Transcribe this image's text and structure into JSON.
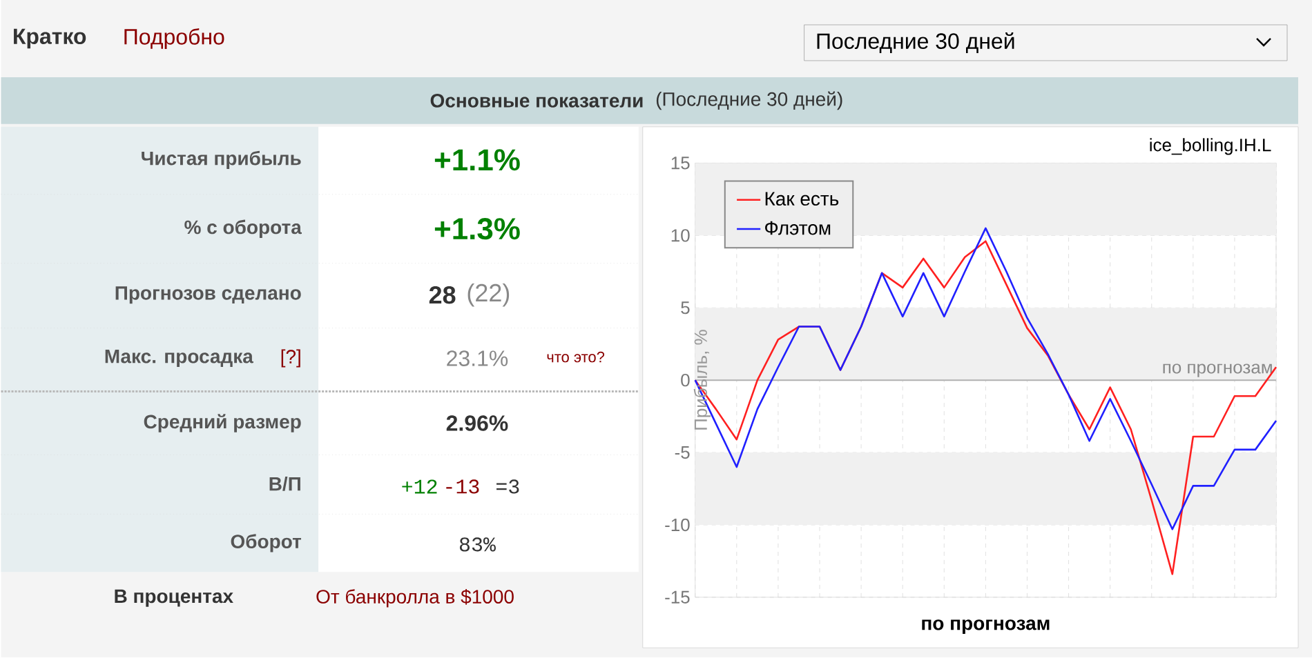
{
  "chart_data": [
    {
      "type": "other",
      "title": "Основные показатели",
      "subtitle": "(Последние 30 дней)",
      "annotations": [
        "Кратко",
        "Подробно",
        "Последние 30 дней",
        "Чистая прибыль",
        "+1.1%",
        "% с оборота",
        "+1.3%",
        "Прогнозов сделано",
        "28",
        "(22)",
        "Макс. просадка",
        "[?]",
        "23.1%",
        "что это?",
        "Средний размер",
        "2.96%",
        "В/П",
        "+12",
        "-13",
        "=3",
        "Оборот",
        "83%",
        "В процентах",
        "От банкролла в $1000"
      ]
    },
    {
      "type": "line",
      "xlabel": "по прогнозам",
      "ylabel": "Прибыль, %",
      "annotations": [
        "ice_bolling.IH.L"
      ],
      "categories": [
        null,
        null,
        null,
        null,
        null,
        null,
        null,
        null,
        null,
        null,
        null,
        null,
        null,
        null,
        null,
        null,
        null,
        null,
        null,
        null,
        null,
        null,
        null,
        null,
        null,
        null,
        null,
        null,
        null
      ],
      "series": [
        {
          "name": "Как есть",
          "color": "#ff2020",
          "values": [
            0,
            -2,
            -4.1,
            0,
            2.8,
            3.7,
            3.7,
            0.7,
            3.7,
            7.4,
            6.4,
            8.4,
            6.4,
            8.5,
            9.6,
            6.6,
            3.6,
            1.7,
            -1.0,
            -3.4,
            -0.5,
            -3.4,
            -8.3,
            -13.4,
            -3.9,
            -3.9,
            -1.1,
            -1.1,
            0.9
          ]
        },
        {
          "name": "Флэтом",
          "color": "#2020ff",
          "values": [
            0,
            -3,
            -6.0,
            -2.0,
            0.9,
            3.7,
            3.7,
            0.7,
            3.7,
            7.4,
            4.4,
            7.4,
            4.4,
            7.5,
            10.5,
            7.5,
            4.3,
            1.8,
            -1.0,
            -4.2,
            -1.3,
            -4.2,
            -7.2,
            -10.3,
            -7.3,
            -7.3,
            -4.8,
            -4.8,
            -2.8
          ]
        }
      ],
      "ylim": [
        -15,
        15
      ],
      "yticks": [
        -15,
        -10,
        -5,
        0,
        5,
        10,
        15
      ],
      "ref_lines": [
        {
          "axis": "y",
          "value": 0,
          "label": "по прогнозам",
          "color": "#b0b0b0"
        }
      ],
      "bands": [
        {
          "axis": "y",
          "from": 10,
          "to": 15,
          "color": "#f0f0f0"
        },
        {
          "axis": "y",
          "from": 0,
          "to": 5,
          "color": "#f0f0f0"
        },
        {
          "axis": "y",
          "from": -10,
          "to": -5,
          "color": "#f0f0f0"
        }
      ],
      "grid": true,
      "legend": "top left",
      "marker": "none"
    }
  ]
}
